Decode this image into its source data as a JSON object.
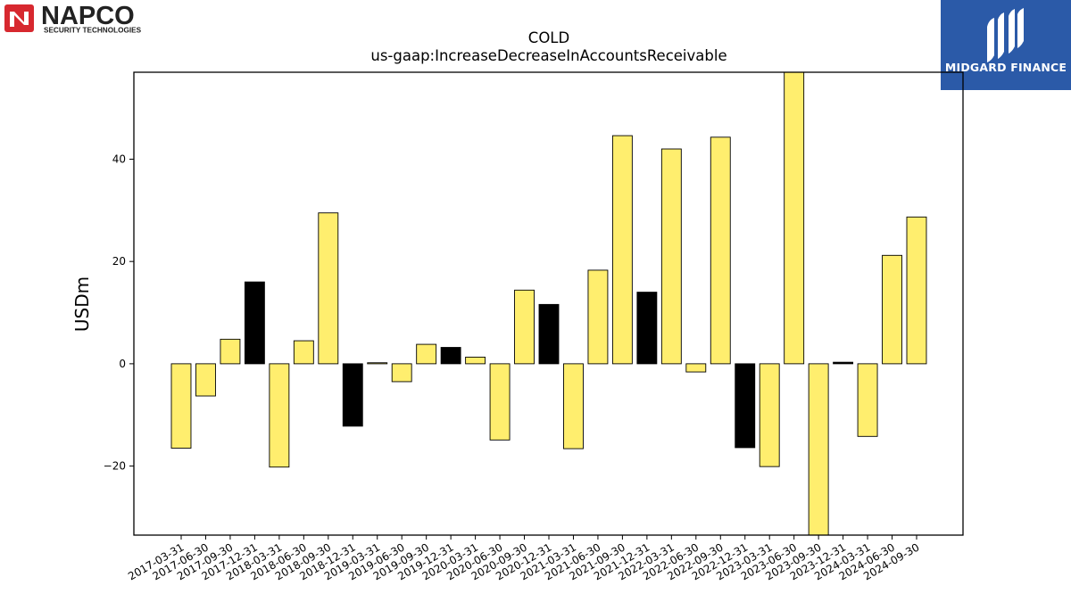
{
  "logos": {
    "napco": {
      "name": "NAPCO",
      "tagline": "SECURITY TECHNOLOGIES",
      "color": "#d7282f"
    },
    "midgard": {
      "name": "MIDGARD FINANCE",
      "background": "#2b5aa8"
    }
  },
  "chart_data": {
    "type": "bar",
    "title": "COLD",
    "subtitle": "us-gaap:IncreaseDecreaseInAccountsReceivable",
    "xlabel": "",
    "ylabel": "USDm",
    "ylim": [
      -33.5,
      57
    ],
    "yticks": [
      -20,
      0,
      20,
      40
    ],
    "grid": false,
    "colors": {
      "fy": "#000000",
      "q": "#ffee6e",
      "edge": "#000000"
    },
    "categories": [
      "2017-03-31",
      "2017-06-30",
      "2017-09-30",
      "2017-12-31",
      "2018-03-31",
      "2018-06-30",
      "2018-09-30",
      "2018-12-31",
      "2019-03-31",
      "2019-06-30",
      "2019-09-30",
      "2019-12-31",
      "2020-03-31",
      "2020-06-30",
      "2020-09-30",
      "2020-12-31",
      "2021-03-31",
      "2021-06-30",
      "2021-09-30",
      "2021-12-31",
      "2022-03-31",
      "2022-06-30",
      "2022-09-30",
      "2022-12-31",
      "2023-03-31",
      "2023-06-30",
      "2023-09-30",
      "2023-12-31",
      "2024-03-31",
      "2024-06-30",
      "2024-09-30"
    ],
    "values": [
      -16.5,
      -6.3,
      4.8,
      16.0,
      -20.2,
      4.5,
      29.5,
      -12.2,
      0.2,
      -3.5,
      3.8,
      3.2,
      1.3,
      -14.9,
      14.4,
      11.6,
      -16.6,
      18.3,
      44.6,
      14.0,
      42.0,
      -1.6,
      44.3,
      -16.4,
      -20.1,
      58.0,
      -33.5,
      0.3,
      -14.2,
      21.2,
      28.7
    ],
    "fiscal_year_end": [
      false,
      false,
      false,
      true,
      false,
      false,
      false,
      true,
      false,
      false,
      false,
      true,
      false,
      false,
      false,
      true,
      false,
      false,
      false,
      true,
      false,
      false,
      false,
      true,
      false,
      false,
      false,
      true,
      false,
      false,
      false
    ]
  }
}
